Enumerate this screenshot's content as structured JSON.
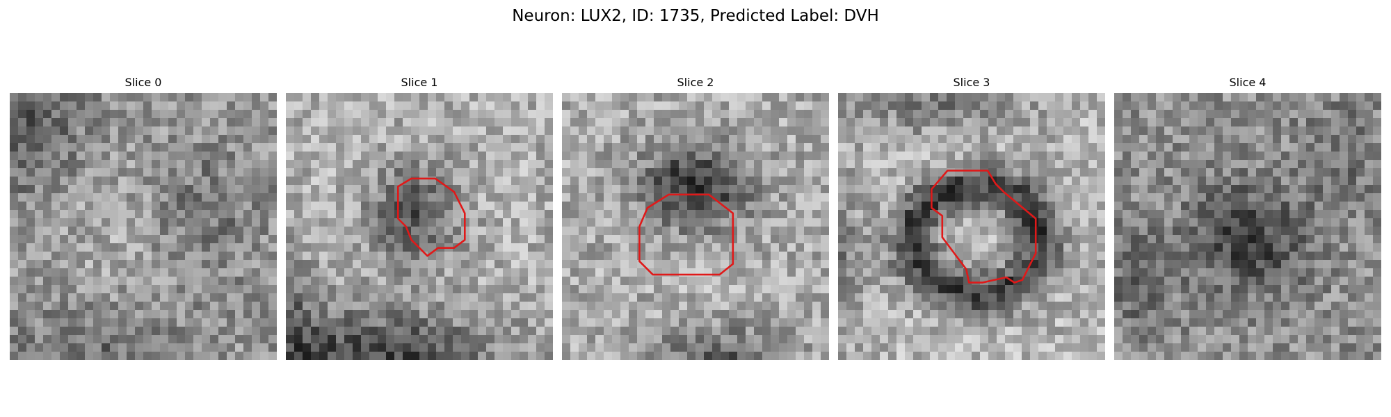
{
  "figure": {
    "title": "Neuron: LUX2, ID: 1735, Predicted Label: DVH"
  },
  "outline_color": "#e01919",
  "slices": [
    {
      "title": "Slice 0"
    },
    {
      "title": "Slice 1"
    },
    {
      "title": "Slice 2"
    },
    {
      "title": "Slice 3"
    },
    {
      "title": "Slice 4"
    }
  ]
}
